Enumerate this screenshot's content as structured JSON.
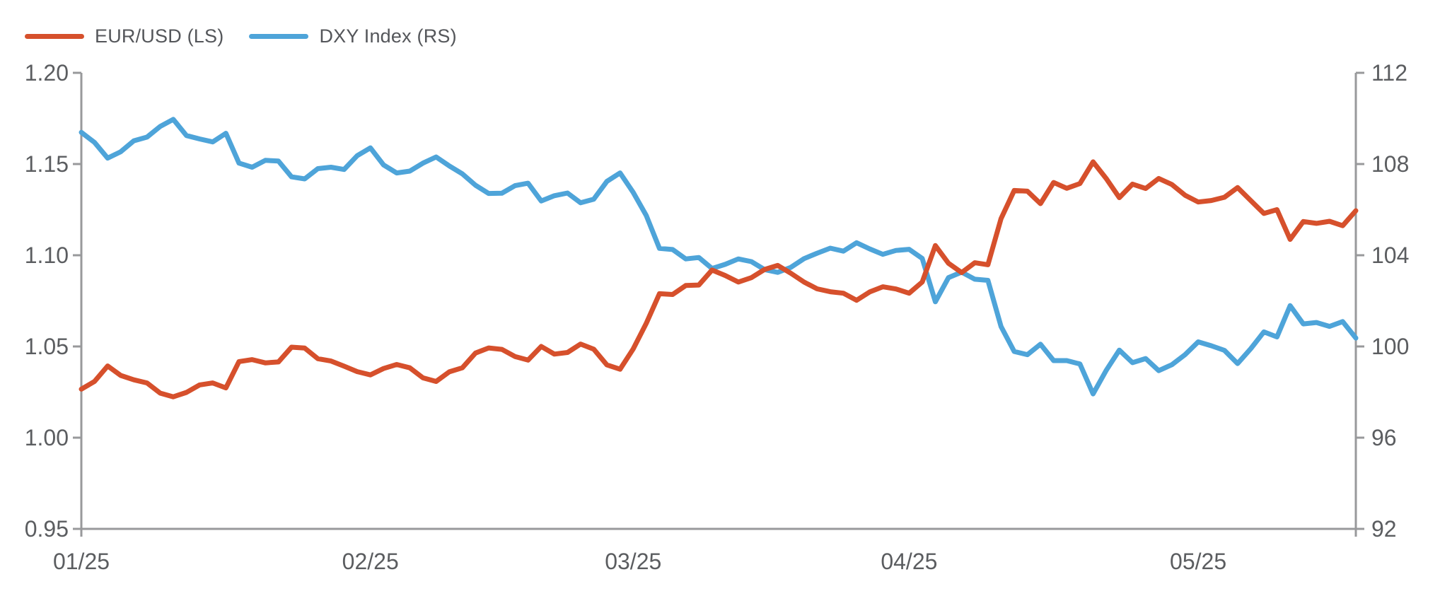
{
  "legend": {
    "items": [
      {
        "label": "EUR/USD (LS)",
        "color": "#D6502C",
        "swatch": "red-line-swatch"
      },
      {
        "label": "DXY Index (RS)",
        "color": "#4EA4D9",
        "swatch": "blue-line-swatch"
      }
    ]
  },
  "chart_data": {
    "type": "line",
    "title": "",
    "x_dates": [
      "01/02",
      "01/03",
      "01/06",
      "01/07",
      "01/08",
      "01/09",
      "01/10",
      "01/13",
      "01/14",
      "01/15",
      "01/16",
      "01/17",
      "01/20",
      "01/21",
      "01/22",
      "01/23",
      "01/24",
      "01/27",
      "01/28",
      "01/29",
      "01/30",
      "01/31",
      "02/03",
      "02/04",
      "02/05",
      "02/06",
      "02/07",
      "02/10",
      "02/11",
      "02/12",
      "02/13",
      "02/14",
      "02/17",
      "02/18",
      "02/19",
      "02/20",
      "02/21",
      "02/24",
      "02/25",
      "02/26",
      "02/27",
      "02/28",
      "03/03",
      "03/04",
      "03/05",
      "03/06",
      "03/07",
      "03/10",
      "03/11",
      "03/12",
      "03/13",
      "03/14",
      "03/17",
      "03/18",
      "03/19",
      "03/20",
      "03/21",
      "03/24",
      "03/25",
      "03/26",
      "03/27",
      "03/28",
      "03/31",
      "04/01",
      "04/02",
      "04/03",
      "04/04",
      "04/07",
      "04/08",
      "04/09",
      "04/10",
      "04/11",
      "04/14",
      "04/15",
      "04/16",
      "04/17",
      "04/18",
      "04/21",
      "04/22",
      "04/23",
      "04/24",
      "04/25",
      "04/28",
      "04/29",
      "04/30",
      "05/01",
      "05/02",
      "05/05",
      "05/06",
      "05/07",
      "05/08",
      "05/09",
      "05/12",
      "05/13",
      "05/14",
      "05/15",
      "05/16",
      "05/19"
    ],
    "x_tick_labels": [
      "01/25",
      "02/25",
      "03/25",
      "04/25",
      "05/25"
    ],
    "x_tick_indices": [
      0,
      22,
      42,
      63,
      85
    ],
    "left_axis": {
      "series": "EUR/USD",
      "min": 0.95,
      "max": 1.2,
      "ticks": [
        1.2,
        1.15,
        1.1,
        1.05,
        1.0,
        0.95
      ],
      "tick_labels": [
        "1.20",
        "1.15",
        "1.10",
        "1.05",
        "1.00",
        "0.95"
      ]
    },
    "right_axis": {
      "series": "DXY Index",
      "min": 92,
      "max": 112,
      "ticks": [
        112,
        108,
        104,
        100,
        96,
        92
      ],
      "tick_labels": [
        "112",
        "108",
        "104",
        "100",
        "96",
        "92"
      ]
    },
    "series": [
      {
        "name": "EUR/USD (LS)",
        "axis": "left",
        "color": "#D6502C",
        "values": [
          1.0266,
          1.0308,
          1.0393,
          1.0341,
          1.0317,
          1.03,
          1.0244,
          1.0224,
          1.0248,
          1.0289,
          1.03,
          1.0273,
          1.0417,
          1.0428,
          1.041,
          1.0415,
          1.0496,
          1.0491,
          1.0433,
          1.042,
          1.0392,
          1.0362,
          1.0344,
          1.0379,
          1.0401,
          1.0383,
          1.0328,
          1.0308,
          1.0361,
          1.0383,
          1.0464,
          1.0492,
          1.0484,
          1.0445,
          1.0425,
          1.05,
          1.0458,
          1.0467,
          1.0513,
          1.0485,
          1.0399,
          1.0375,
          1.0486,
          1.0627,
          1.0789,
          1.0785,
          1.0834,
          1.0837,
          1.0919,
          1.0889,
          1.0853,
          1.0877,
          1.0922,
          1.0944,
          1.0901,
          1.0853,
          1.0816,
          1.08,
          1.0792,
          1.0753,
          1.0799,
          1.0827,
          1.0815,
          1.0792,
          1.0853,
          1.1053,
          1.0956,
          1.0905,
          1.0959,
          1.0948,
          1.1201,
          1.1355,
          1.1351,
          1.1283,
          1.1399,
          1.1367,
          1.1393,
          1.1512,
          1.1421,
          1.1316,
          1.139,
          1.1366,
          1.1421,
          1.1388,
          1.1329,
          1.1292,
          1.13,
          1.1318,
          1.1371,
          1.13,
          1.1229,
          1.125,
          1.1087,
          1.1185,
          1.1175,
          1.1186,
          1.1162,
          1.1244
        ]
      },
      {
        "name": "DXY Index (RS)",
        "axis": "right",
        "color": "#4EA4D9",
        "values": [
          109.39,
          108.95,
          108.26,
          108.54,
          109.02,
          109.18,
          109.65,
          109.96,
          109.25,
          109.1,
          108.97,
          109.35,
          108.04,
          107.86,
          108.16,
          108.13,
          107.44,
          107.35,
          107.8,
          107.86,
          107.76,
          108.37,
          108.71,
          107.96,
          107.61,
          107.69,
          108.04,
          108.31,
          107.92,
          107.57,
          107.07,
          106.71,
          106.72,
          107.05,
          107.16,
          106.38,
          106.61,
          106.73,
          106.3,
          106.46,
          107.24,
          107.61,
          106.76,
          105.74,
          104.3,
          104.25,
          103.84,
          103.9,
          103.42,
          103.6,
          103.84,
          103.72,
          103.37,
          103.25,
          103.47,
          103.85,
          104.09,
          104.31,
          104.18,
          104.55,
          104.28,
          104.04,
          104.21,
          104.26,
          103.86,
          101.96,
          103.02,
          103.26,
          102.95,
          102.9,
          100.87,
          99.78,
          99.64,
          100.1,
          99.38,
          99.38,
          99.23,
          97.92,
          98.95,
          99.84,
          99.29,
          99.47,
          98.94,
          99.2,
          99.64,
          100.2,
          100.03,
          99.83,
          99.25,
          99.9,
          100.64,
          100.42,
          101.79,
          100.99,
          101.05,
          100.88,
          101.09,
          100.37
        ]
      }
    ],
    "legend_position": "top-left",
    "grid": false,
    "styles": {
      "axis_line_color": "#98999B",
      "tick_label_color": "#5B5D60",
      "axis_line_width": 3,
      "tick_length": 12,
      "line_width": 7,
      "tick_font_size": 32,
      "background": "#FFFFFF"
    }
  }
}
